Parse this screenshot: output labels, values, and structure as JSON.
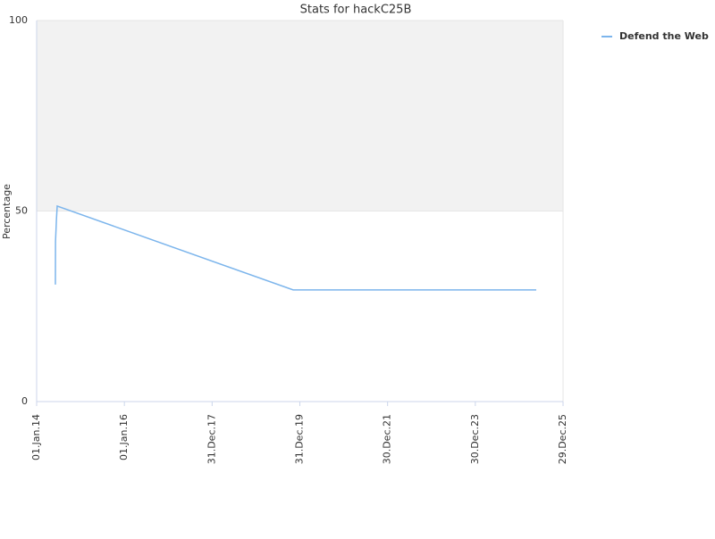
{
  "chart_data": {
    "type": "line",
    "title": "Stats for hackC25B",
    "y_label": "Percentage",
    "x": [
      "2014-06-06",
      "2014-06-07",
      "2014-06-15",
      "2014-06-21",
      "2019-11-05",
      "2025-05-20"
    ],
    "series": [
      {
        "name": "Defend the Web",
        "color": "#7cb5ec",
        "values": [
          30.7,
          42,
          48,
          51.3,
          29.3,
          29.3
        ]
      }
    ],
    "xlim": [
      "2014-01-01",
      "2025-12-29"
    ],
    "xticks": [
      {
        "value": "2014-01-01",
        "label": "01.Jan.14"
      },
      {
        "value": "2016-01-01",
        "label": "01.Jan.16"
      },
      {
        "value": "2017-12-31",
        "label": "31.Dec.17"
      },
      {
        "value": "2019-12-31",
        "label": "31.Dec.19"
      },
      {
        "value": "2021-12-30",
        "label": "30.Dec.21"
      },
      {
        "value": "2023-12-30",
        "label": "30.Dec.23"
      },
      {
        "value": "2025-12-29",
        "label": "29.Dec.25"
      }
    ],
    "ylim": [
      0,
      100
    ],
    "yticks": [
      0,
      50,
      100
    ],
    "plot_band": [
      50,
      100
    ],
    "band_color": "#f2f2f2",
    "legend": "top-right"
  }
}
